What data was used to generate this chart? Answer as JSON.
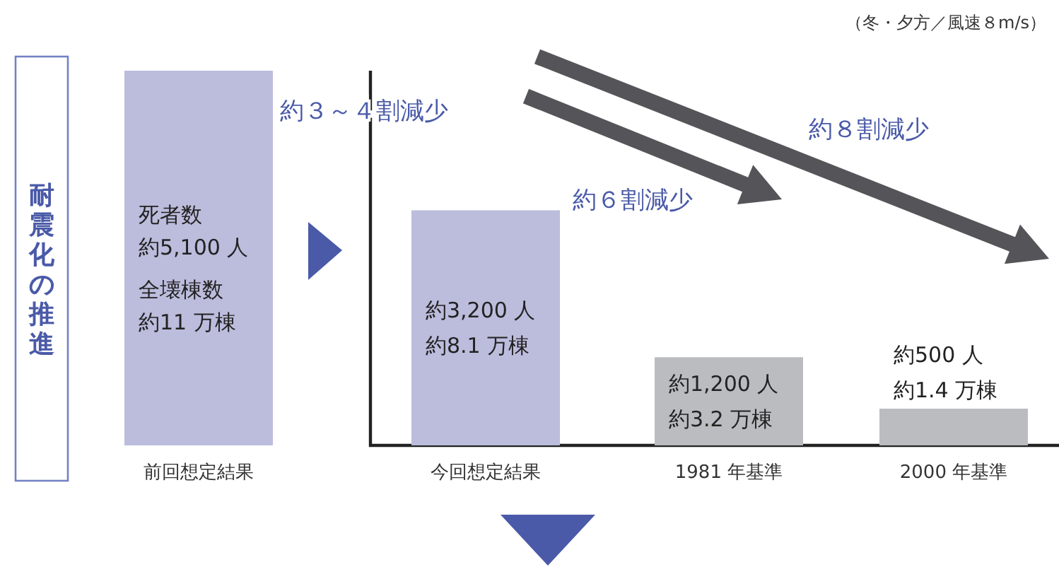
{
  "chart_data": {
    "type": "bar",
    "categories": [
      "前回想定結果",
      "今回想定結果",
      "1981 年基準",
      "2000 年基準"
    ],
    "values": [
      5100,
      3200,
      1200,
      500
    ],
    "colors": [
      "#bcbcdd",
      "#bcbcdd",
      "#bbbcbf",
      "#bbbcbf"
    ],
    "value_labels": [
      "約5,100 人約11 万棟",
      "約3,200 人約8.1 万棟",
      "約1,200 人約3.2 万棟",
      "約500 人約1.4 万棟"
    ],
    "ylabel": "耐震化の推進",
    "annotations": [
      "（冬・夕方／風速８m/s）",
      "約３～４割減少",
      "約６割減少",
      "約８割減少",
      "死者数",
      "全壊棟数"
    ]
  }
}
